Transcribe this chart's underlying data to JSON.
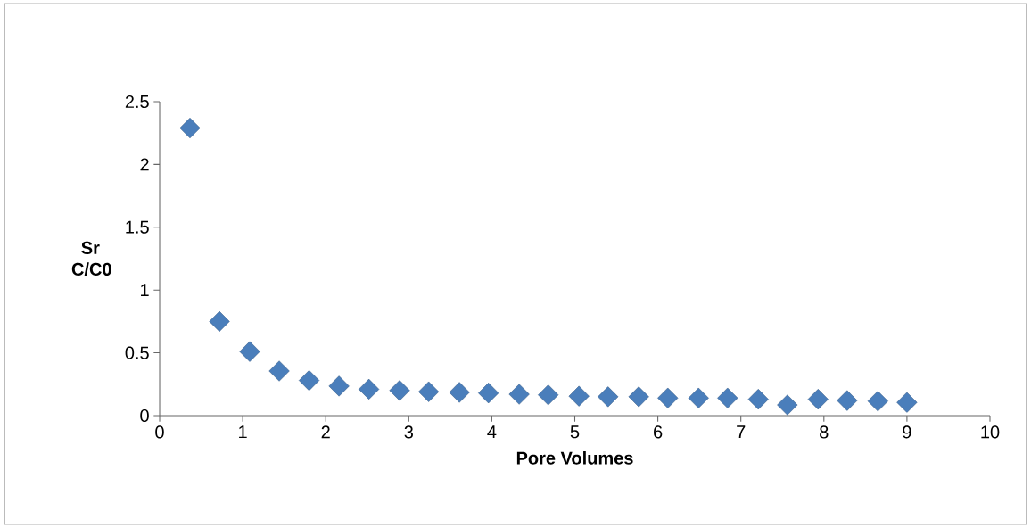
{
  "chart_data": {
    "type": "scatter",
    "xlabel": "Pore Volumes",
    "ylabel": "Sr C/C0",
    "x": [
      0.365,
      0.72,
      1.085,
      1.44,
      1.8,
      2.16,
      2.52,
      2.89,
      3.24,
      3.61,
      3.96,
      4.33,
      4.68,
      5.05,
      5.4,
      5.77,
      6.12,
      6.49,
      6.84,
      7.21,
      7.56,
      7.93,
      8.28,
      8.65,
      9.0
    ],
    "values": [
      2.29,
      0.75,
      0.51,
      0.355,
      0.28,
      0.235,
      0.21,
      0.2,
      0.19,
      0.185,
      0.18,
      0.17,
      0.165,
      0.155,
      0.15,
      0.15,
      0.14,
      0.14,
      0.14,
      0.13,
      0.085,
      0.13,
      0.12,
      0.115,
      0.105
    ],
    "color": "#4a7ebb",
    "marker": "diamond",
    "xlim": [
      0,
      10
    ],
    "ylim": [
      0,
      2.5
    ],
    "xticks": [
      0,
      1,
      2,
      3,
      4,
      5,
      6,
      7,
      8,
      9,
      10
    ],
    "yticks": [
      0,
      {
        "value": 0.5,
        "label": "0.5"
      },
      1,
      {
        "value": 1.5,
        "label": "1.5"
      },
      2,
      {
        "value": 2.5,
        "label": "2.5"
      }
    ],
    "grid": false
  }
}
